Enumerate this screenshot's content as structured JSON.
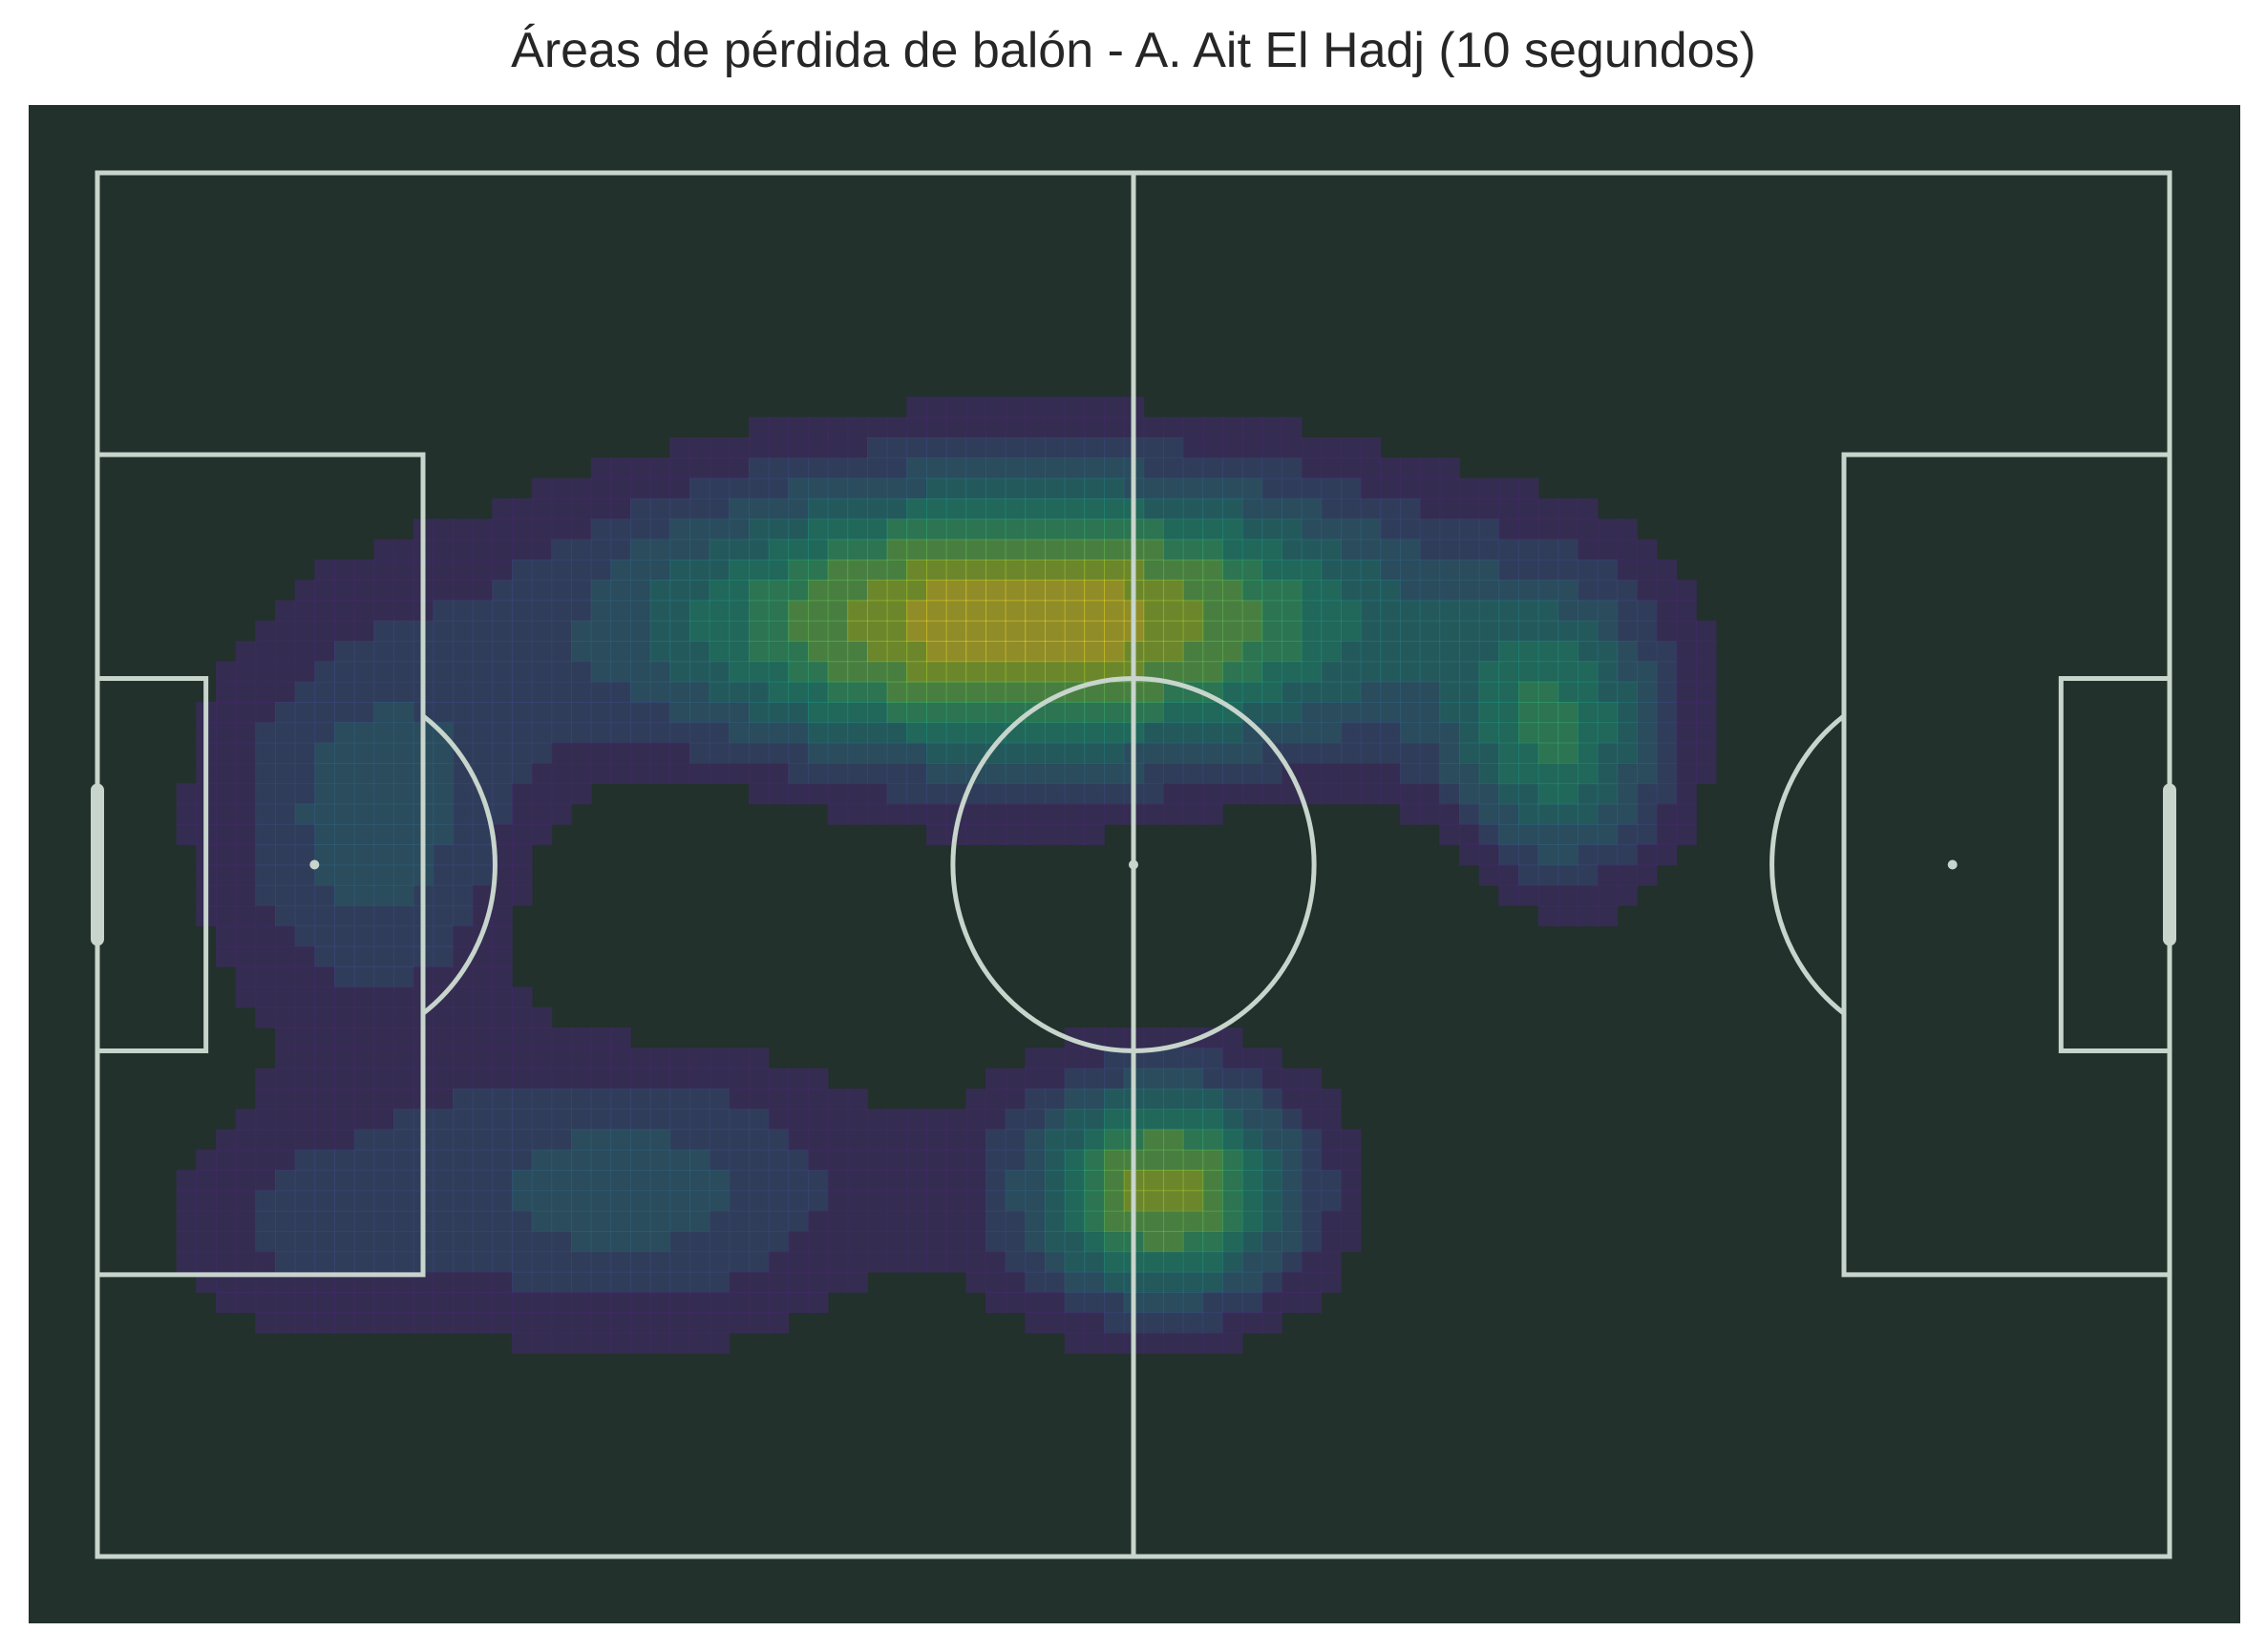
{
  "chart_data": {
    "type": "heatmap",
    "subtype": "kde-contour",
    "title": "Áreas de pérdida de balón - A. Ait El Hadj (10 segundos)",
    "xlabel": "",
    "ylabel": "",
    "pitch": {
      "length": 105,
      "width": 68,
      "orientation": "horizontal",
      "background_color": "#22312b",
      "line_color": "#c7d5cc"
    },
    "colormap": "viridis",
    "levels": 10,
    "grid": false,
    "legend": "none",
    "density_peaks": [
      {
        "x": 47,
        "y": 22,
        "sx": 14,
        "sy": 5,
        "weight": 1.0
      },
      {
        "x": 54,
        "y": 50,
        "sx": 5,
        "sy": 4,
        "weight": 0.85
      },
      {
        "x": 74,
        "y": 28,
        "sx": 4,
        "sy": 5,
        "weight": 0.55
      },
      {
        "x": 27,
        "y": 50,
        "sx": 9,
        "sy": 5,
        "weight": 0.35
      },
      {
        "x": 14,
        "y": 32,
        "sx": 6,
        "sy": 7,
        "weight": 0.35
      },
      {
        "x": 10,
        "y": 52,
        "sx": 5,
        "sy": 4,
        "weight": 0.18
      }
    ],
    "low_density_holes": [
      {
        "x": 62,
        "y": 36,
        "sx": 5,
        "sy": 2.5,
        "depth": 0.25
      },
      {
        "x": 30,
        "y": 36,
        "sx": 5,
        "sy": 3.5,
        "depth": 0.18
      }
    ]
  }
}
